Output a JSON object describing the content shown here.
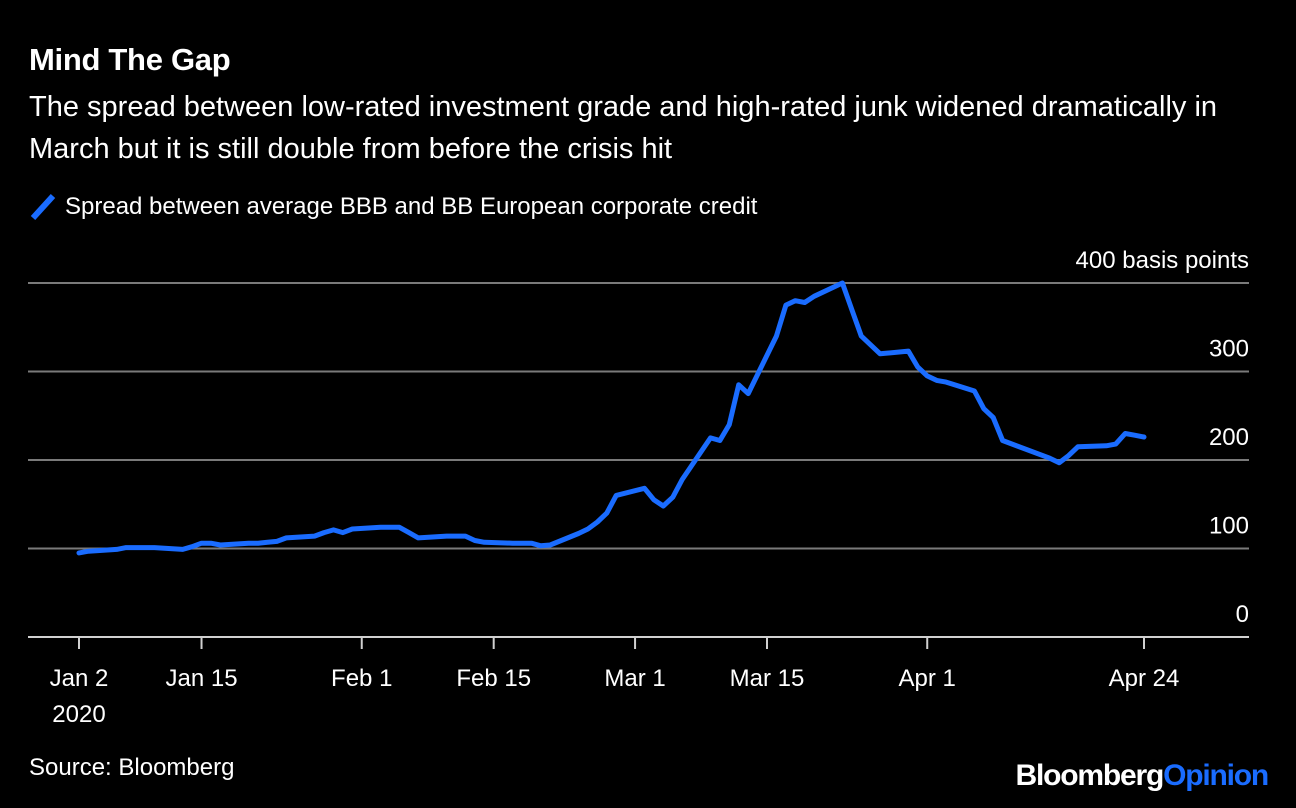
{
  "title": "Mind The Gap",
  "subtitle": "The spread between low-rated investment grade and high-rated junk widened dramatically in March but it is still double from before the crisis hit",
  "source": "Source: Bloomberg",
  "brand": {
    "part1": "Bloomberg",
    "part2": "Opinion"
  },
  "colors": {
    "background": "#000000",
    "series": "#1a6cff",
    "grid": "#7a7a7a",
    "text": "#ffffff"
  },
  "chart_data": {
    "type": "line",
    "x_axis_type": "date",
    "ylabel": "basis points",
    "ylim": [
      0,
      400
    ],
    "y_ticks": [
      {
        "value": 0,
        "label": "0"
      },
      {
        "value": 100,
        "label": "100"
      },
      {
        "value": 200,
        "label": "200"
      },
      {
        "value": 300,
        "label": "300"
      },
      {
        "value": 400,
        "label": "400 basis points"
      }
    ],
    "xlim": [
      "2020-01-02",
      "2020-04-24"
    ],
    "x_ticks": [
      {
        "date": "2020-01-02",
        "label": "Jan 2",
        "sublabel": "2020"
      },
      {
        "date": "2020-01-15",
        "label": "Jan 15"
      },
      {
        "date": "2020-02-01",
        "label": "Feb 1"
      },
      {
        "date": "2020-02-15",
        "label": "Feb 15"
      },
      {
        "date": "2020-03-01",
        "label": "Mar 1"
      },
      {
        "date": "2020-03-15",
        "label": "Mar 15"
      },
      {
        "date": "2020-04-01",
        "label": "Apr 1"
      },
      {
        "date": "2020-04-24",
        "label": "Apr 24"
      }
    ],
    "grid": true,
    "legend_position": "top-left",
    "series": [
      {
        "name": "Spread between average BBB and BB European corporate credit",
        "color": "#1a6cff",
        "points": [
          [
            "2020-01-02",
            95
          ],
          [
            "2020-01-03",
            97
          ],
          [
            "2020-01-06",
            99
          ],
          [
            "2020-01-07",
            101
          ],
          [
            "2020-01-08",
            101
          ],
          [
            "2020-01-09",
            101
          ],
          [
            "2020-01-10",
            101
          ],
          [
            "2020-01-13",
            99
          ],
          [
            "2020-01-14",
            102
          ],
          [
            "2020-01-15",
            106
          ],
          [
            "2020-01-16",
            106
          ],
          [
            "2020-01-17",
            104
          ],
          [
            "2020-01-20",
            106
          ],
          [
            "2020-01-21",
            106
          ],
          [
            "2020-01-22",
            107
          ],
          [
            "2020-01-23",
            108
          ],
          [
            "2020-01-24",
            112
          ],
          [
            "2020-01-27",
            114
          ],
          [
            "2020-01-28",
            118
          ],
          [
            "2020-01-29",
            121
          ],
          [
            "2020-01-30",
            118
          ],
          [
            "2020-01-31",
            122
          ],
          [
            "2020-02-03",
            124
          ],
          [
            "2020-02-04",
            124
          ],
          [
            "2020-02-05",
            124
          ],
          [
            "2020-02-06",
            118
          ],
          [
            "2020-02-07",
            112
          ],
          [
            "2020-02-10",
            114
          ],
          [
            "2020-02-11",
            114
          ],
          [
            "2020-02-12",
            114
          ],
          [
            "2020-02-13",
            109
          ],
          [
            "2020-02-14",
            107
          ],
          [
            "2020-02-17",
            106
          ],
          [
            "2020-02-18",
            106
          ],
          [
            "2020-02-19",
            106
          ],
          [
            "2020-02-20",
            103
          ],
          [
            "2020-02-21",
            104
          ],
          [
            "2020-02-24",
            117
          ],
          [
            "2020-02-25",
            122
          ],
          [
            "2020-02-26",
            130
          ],
          [
            "2020-02-27",
            140
          ],
          [
            "2020-02-28",
            160
          ],
          [
            "2020-03-02",
            168
          ],
          [
            "2020-03-03",
            155
          ],
          [
            "2020-03-04",
            148
          ],
          [
            "2020-03-05",
            158
          ],
          [
            "2020-03-06",
            178
          ],
          [
            "2020-03-09",
            225
          ],
          [
            "2020-03-10",
            222
          ],
          [
            "2020-03-11",
            240
          ],
          [
            "2020-03-12",
            285
          ],
          [
            "2020-03-13",
            275
          ],
          [
            "2020-03-16",
            340
          ],
          [
            "2020-03-17",
            375
          ],
          [
            "2020-03-18",
            380
          ],
          [
            "2020-03-19",
            378
          ],
          [
            "2020-03-20",
            385
          ],
          [
            "2020-03-23",
            400
          ],
          [
            "2020-03-24",
            370
          ],
          [
            "2020-03-25",
            340
          ],
          [
            "2020-03-26",
            330
          ],
          [
            "2020-03-27",
            320
          ],
          [
            "2020-03-30",
            323
          ],
          [
            "2020-03-31",
            305
          ],
          [
            "2020-04-01",
            295
          ],
          [
            "2020-04-02",
            290
          ],
          [
            "2020-04-03",
            288
          ],
          [
            "2020-04-06",
            278
          ],
          [
            "2020-04-07",
            258
          ],
          [
            "2020-04-08",
            248
          ],
          [
            "2020-04-09",
            222
          ],
          [
            "2020-04-14",
            202
          ],
          [
            "2020-04-15",
            197
          ],
          [
            "2020-04-16",
            205
          ],
          [
            "2020-04-17",
            215
          ],
          [
            "2020-04-20",
            216
          ],
          [
            "2020-04-21",
            218
          ],
          [
            "2020-04-22",
            230
          ],
          [
            "2020-04-23",
            228
          ],
          [
            "2020-04-24",
            226
          ]
        ]
      }
    ]
  }
}
